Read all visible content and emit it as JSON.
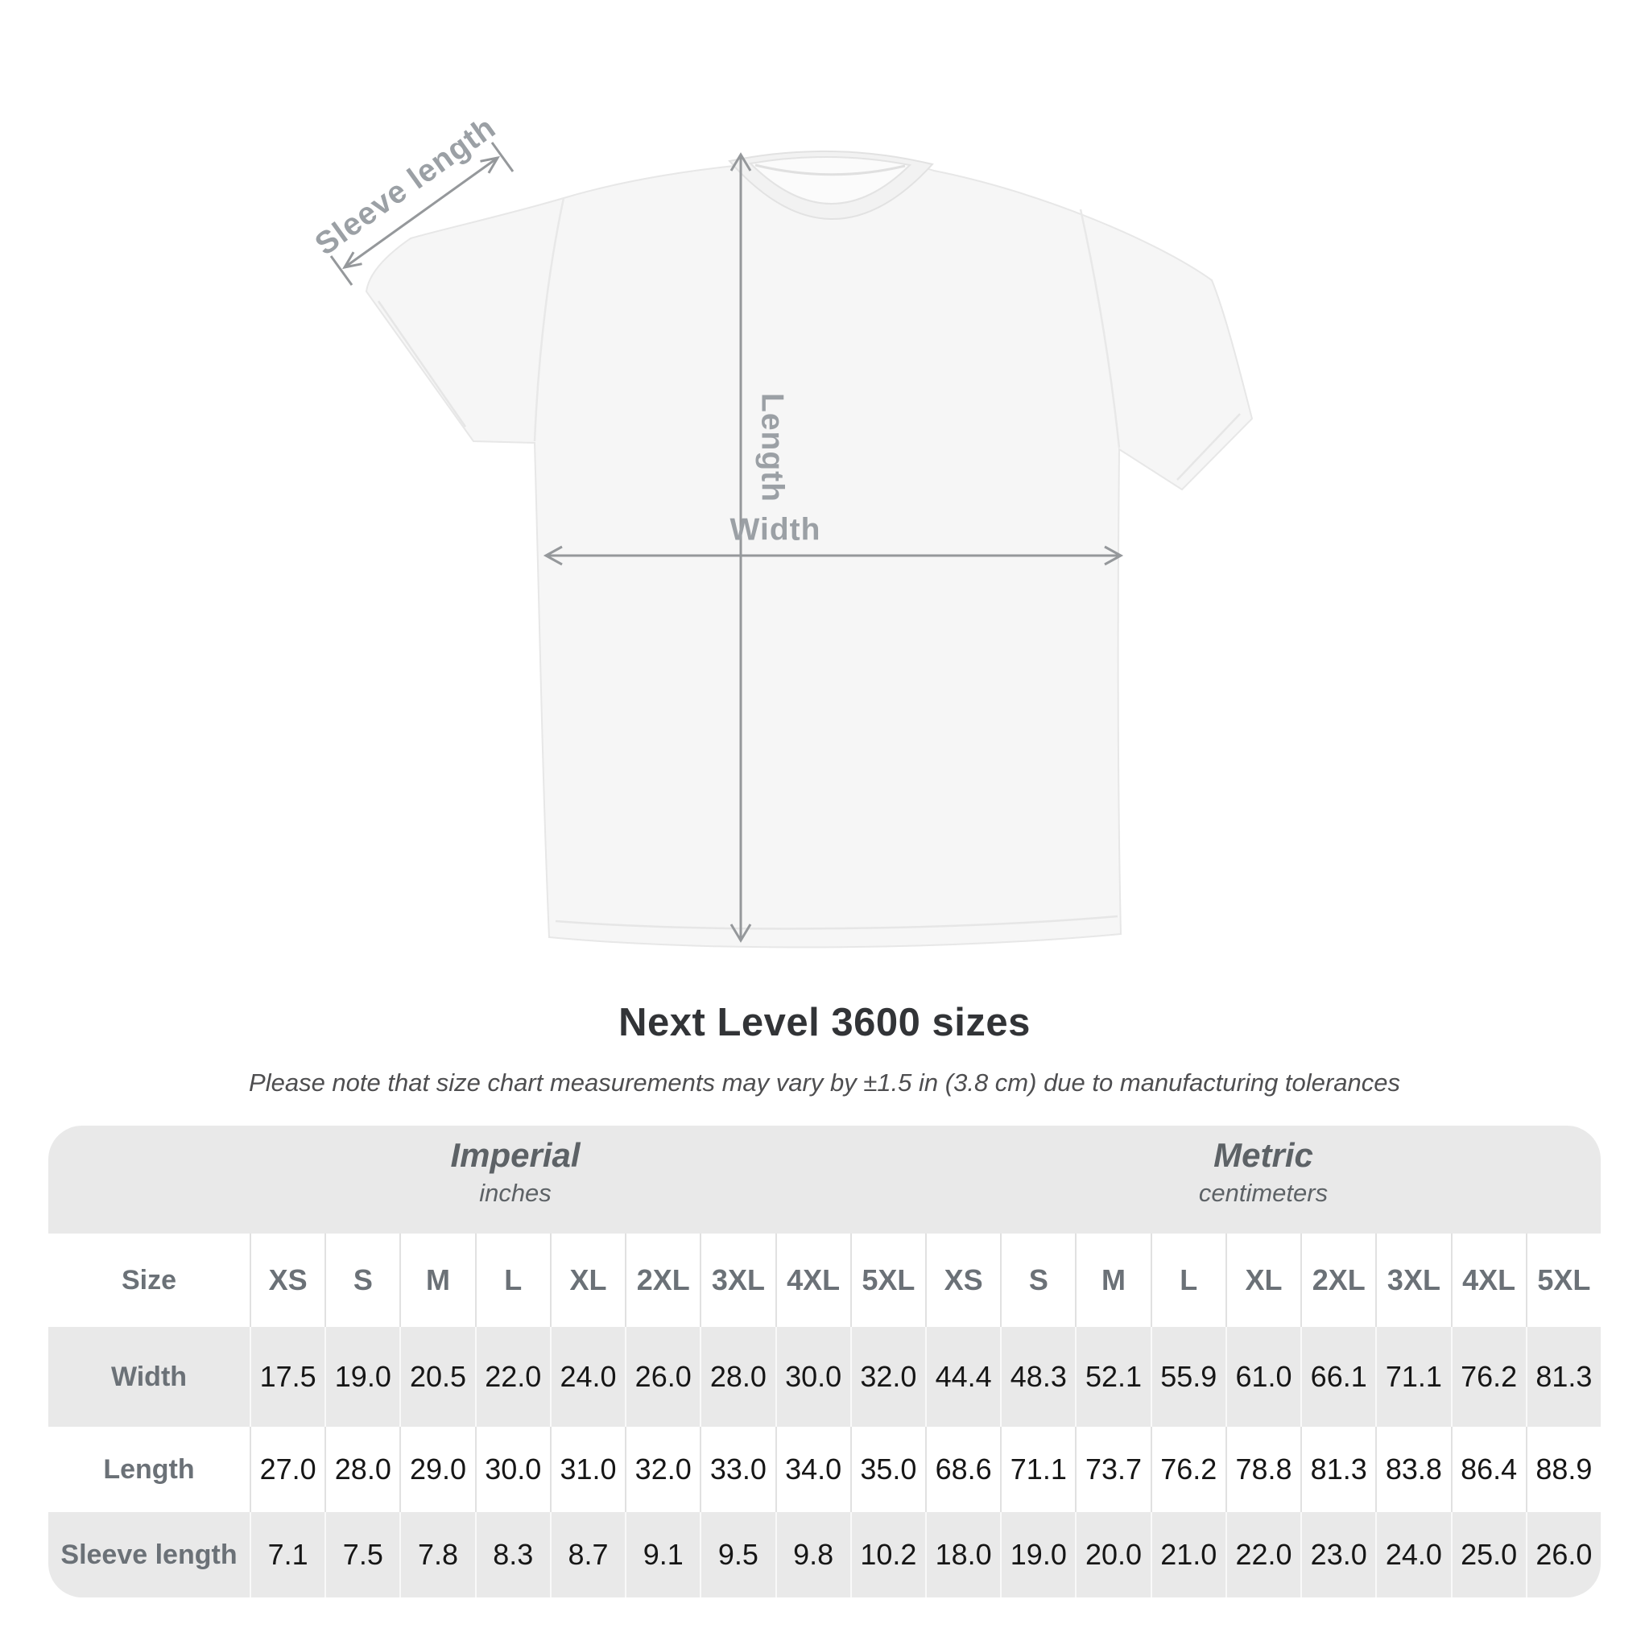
{
  "diagram": {
    "sleeve_length_label": "Sleeve length",
    "length_label": "Length",
    "width_label": "Width"
  },
  "title": "Next Level 3600 sizes",
  "note": "Please note that size chart measurements may vary by ±1.5 in (3.8 cm) due to manufacturing tolerances",
  "table": {
    "size_header": "Size",
    "groups": [
      {
        "title": "Imperial",
        "unit": "inches"
      },
      {
        "title": "Metric",
        "unit": "centimeters"
      }
    ]
  },
  "chart_data": {
    "type": "table",
    "title": "Next Level 3600 sizes",
    "note": "Please note that size chart measurements may vary by ±1.5 in (3.8 cm) due to manufacturing tolerances",
    "sizes": [
      "XS",
      "S",
      "M",
      "L",
      "XL",
      "2XL",
      "3XL",
      "4XL",
      "5XL"
    ],
    "unit_groups": [
      "Imperial (inches)",
      "Metric (centimeters)"
    ],
    "measurements": [
      {
        "label": "Width",
        "imperial_in": [
          "17.5",
          "19.0",
          "20.5",
          "22.0",
          "24.0",
          "26.0",
          "28.0",
          "30.0",
          "32.0"
        ],
        "metric_cm": [
          "44.4",
          "48.3",
          "52.1",
          "55.9",
          "61.0",
          "66.1",
          "71.1",
          "76.2",
          "81.3"
        ]
      },
      {
        "label": "Length",
        "imperial_in": [
          "27.0",
          "28.0",
          "29.0",
          "30.0",
          "31.0",
          "32.0",
          "33.0",
          "34.0",
          "35.0"
        ],
        "metric_cm": [
          "68.6",
          "71.1",
          "73.7",
          "76.2",
          "78.8",
          "81.3",
          "83.8",
          "86.4",
          "88.9"
        ]
      },
      {
        "label": "Sleeve length",
        "imperial_in": [
          "7.1",
          "7.5",
          "7.8",
          "8.3",
          "8.7",
          "9.1",
          "9.5",
          "9.8",
          "10.2"
        ],
        "metric_cm": [
          "18.0",
          "19.0",
          "20.0",
          "21.0",
          "22.0",
          "23.0",
          "24.0",
          "25.0",
          "26.0"
        ]
      }
    ]
  },
  "colors": {
    "table_band_gray": "#e9e9e9",
    "label_gray": "#6b7177",
    "diagram_gray": "#9ba0a5",
    "title_color": "#323437",
    "value_color": "#161616"
  }
}
